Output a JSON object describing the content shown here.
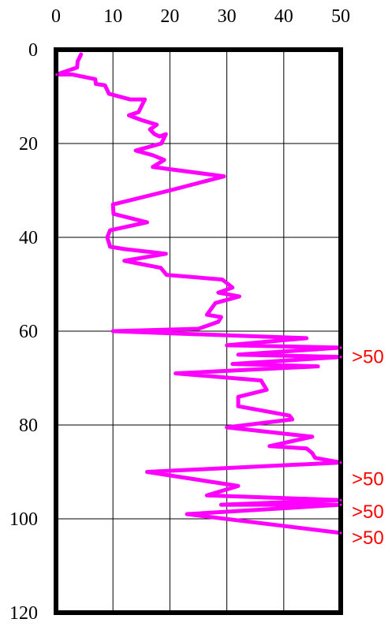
{
  "chart_data": {
    "type": "line",
    "title": "",
    "xlabel": "",
    "ylabel": "",
    "xlim": [
      0,
      50
    ],
    "ylim": [
      0,
      120
    ],
    "y_inverted": true,
    "x_axis_position": "top",
    "grid": true,
    "x_ticks": [
      "0",
      "10",
      "20",
      "30",
      "40",
      "50"
    ],
    "y_ticks": [
      "0",
      "20",
      "40",
      "60",
      "80",
      "100",
      "120"
    ],
    "series_color": "#ff00ff",
    "annotation_color": "#ff0000",
    "series": [
      {
        "points": [
          [
            4.4,
            1.0
          ],
          [
            3.8,
            2.5
          ],
          [
            3.7,
            3.8
          ],
          [
            0.1,
            5.3
          ],
          [
            2.9,
            5.3
          ],
          [
            6.9,
            6.3
          ],
          [
            7.0,
            7.3
          ],
          [
            8.6,
            7.6
          ],
          [
            9.3,
            9.4
          ],
          [
            13.0,
            10.6
          ],
          [
            15.6,
            10.6
          ],
          [
            14.5,
            13.3
          ],
          [
            12.8,
            14.0
          ],
          [
            15.0,
            15.0
          ],
          [
            17.7,
            16.0
          ],
          [
            16.5,
            17.0
          ],
          [
            17.3,
            18.0
          ],
          [
            18.2,
            18.5
          ],
          [
            19.3,
            18.0
          ],
          [
            18.5,
            20.0
          ],
          [
            14.0,
            21.5
          ],
          [
            17.0,
            22.5
          ],
          [
            19.0,
            23.5
          ],
          [
            17.0,
            25.0
          ],
          [
            29.5,
            27.0
          ],
          [
            20.0,
            30.0
          ],
          [
            10.0,
            33.0
          ],
          [
            10.1,
            35.0
          ],
          [
            16.0,
            36.8
          ],
          [
            9.5,
            38.5
          ],
          [
            9.0,
            40.0
          ],
          [
            9.5,
            42.0
          ],
          [
            12.0,
            42.5
          ],
          [
            19.3,
            43.5
          ],
          [
            12.0,
            45.0
          ],
          [
            18.4,
            46.5
          ],
          [
            19.4,
            48.0
          ],
          [
            29.2,
            49.0
          ],
          [
            31.0,
            50.7
          ],
          [
            28.5,
            51.8
          ],
          [
            32.2,
            52.6
          ],
          [
            28.0,
            54.0
          ],
          [
            26.5,
            56.5
          ],
          [
            29.0,
            57.0
          ],
          [
            28.5,
            58.0
          ],
          [
            25.0,
            59.5
          ],
          [
            10.0,
            60.0
          ],
          [
            44.0,
            61.5
          ],
          [
            30.0,
            63.0
          ],
          [
            50,
            63.5
          ],
          [
            32.0,
            65.0
          ],
          [
            50,
            65.5
          ],
          [
            31.0,
            67.0
          ],
          [
            46.0,
            67.5
          ],
          [
            21.0,
            69.0
          ],
          [
            36.0,
            70.5
          ],
          [
            37.0,
            72.5
          ],
          [
            32.0,
            74.0
          ],
          [
            32.0,
            76.0
          ],
          [
            41.0,
            78.0
          ],
          [
            41.5,
            78.8
          ],
          [
            30.0,
            80.5
          ],
          [
            45.0,
            82.5
          ],
          [
            37.5,
            84.5
          ],
          [
            44.0,
            85.0
          ],
          [
            45.0,
            86.0
          ],
          [
            45.5,
            87.0
          ],
          [
            50,
            88.0
          ],
          [
            16.0,
            90.0
          ],
          [
            32.0,
            93.0
          ],
          [
            26.5,
            95.0
          ],
          [
            50,
            96.0
          ],
          [
            29.0,
            97.0
          ],
          [
            50,
            97.0
          ],
          [
            23.0,
            99.0
          ],
          [
            50,
            103.0
          ]
        ]
      }
    ],
    "annotations": [
      {
        "text": ">50",
        "y": 65.5
      },
      {
        "text": ">50",
        "y": 91.5
      },
      {
        "text": ">50",
        "y": 98.5
      },
      {
        "text": ">50",
        "y": 104.0
      }
    ]
  }
}
